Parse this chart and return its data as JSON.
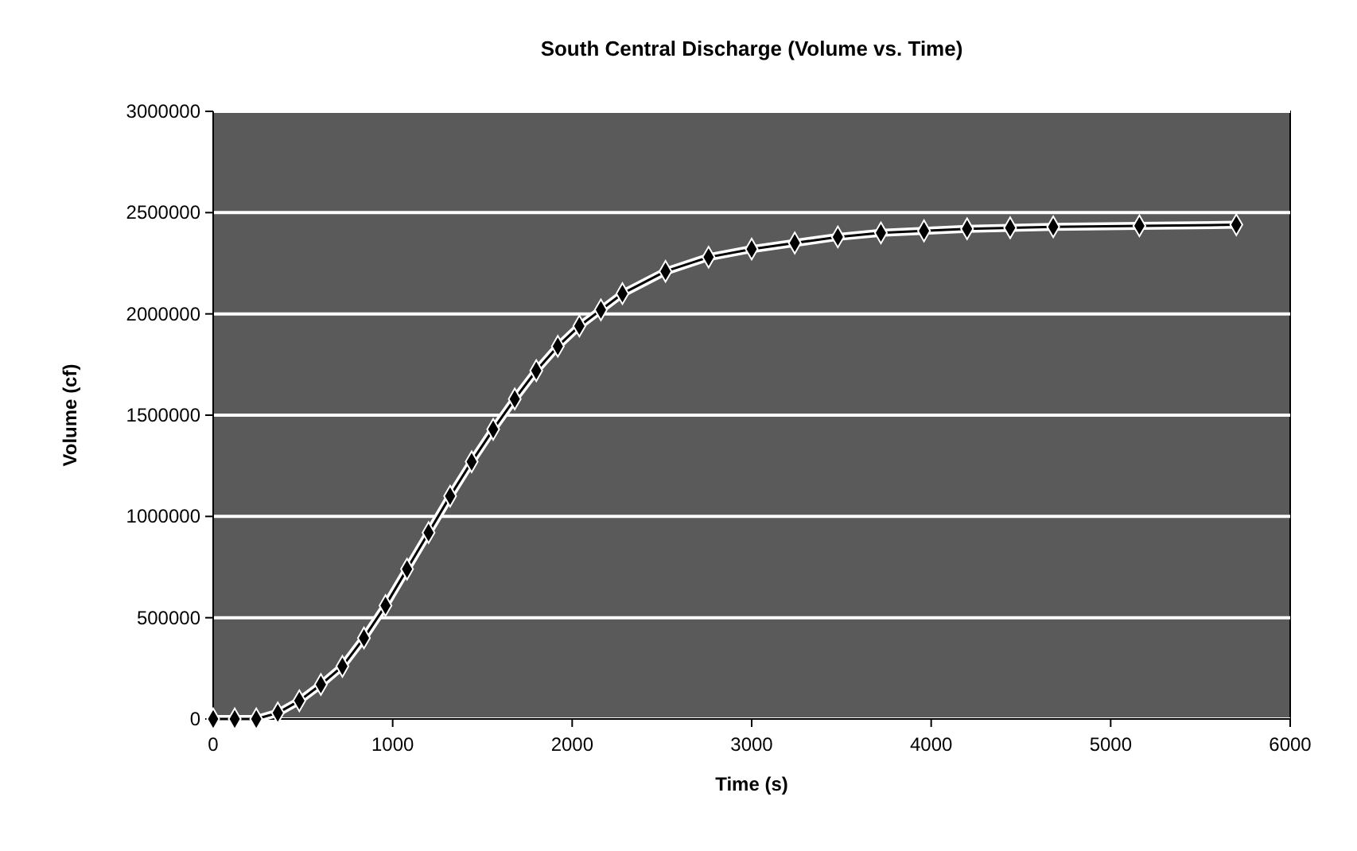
{
  "chart_data": {
    "type": "line",
    "title": "South Central Discharge (Volume vs. Time)",
    "xlabel": "Time (s)",
    "ylabel": "Volume (cf)",
    "x": [
      0,
      120,
      240,
      360,
      480,
      600,
      720,
      840,
      960,
      1080,
      1200,
      1320,
      1440,
      1560,
      1680,
      1800,
      1920,
      2040,
      2160,
      2280,
      2520,
      2760,
      3000,
      3240,
      3480,
      3720,
      3960,
      4200,
      4440,
      4680,
      5160,
      5700
    ],
    "series": [
      {
        "color": "#000000",
        "values": [
          0,
          0,
          0,
          30000,
          90000,
          170000,
          260000,
          400000,
          560000,
          740000,
          920000,
          1100000,
          1270000,
          1430000,
          1580000,
          1720000,
          1840000,
          1940000,
          2020000,
          2100000,
          2210000,
          2280000,
          2320000,
          2350000,
          2380000,
          2400000,
          2410000,
          2420000,
          2425000,
          2430000,
          2435000,
          2440000
        ]
      }
    ],
    "xlim": [
      0,
      6000
    ],
    "xticks": [
      0,
      1000,
      2000,
      3000,
      4000,
      5000,
      6000
    ],
    "ylim": [
      0,
      3000000
    ],
    "yticks": [
      0,
      500000,
      1000000,
      1500000,
      2000000,
      2500000,
      3000000
    ],
    "grid": "y",
    "marker": "diamond",
    "line_style": "solid"
  }
}
